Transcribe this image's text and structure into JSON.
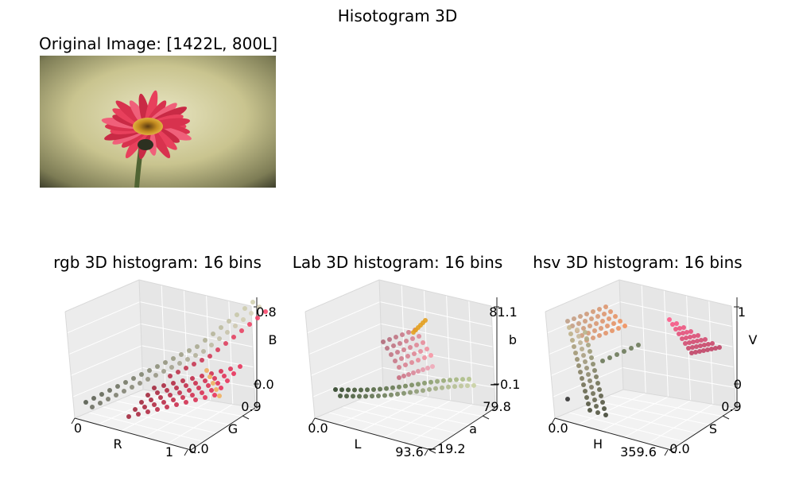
{
  "figure": {
    "title": "Hisotogram 3D"
  },
  "image": {
    "title": "Original Image: [1422L, 800L]"
  },
  "chart_data": [
    {
      "type": "scatter",
      "title": "rgb 3D histogram: 16 bins",
      "xlabel": "R",
      "ylabel": "G",
      "zlabel": "B",
      "xticks": [
        "0",
        "1"
      ],
      "yticks": [
        "0.0",
        "0.9"
      ],
      "zticks": [
        "0.0",
        "0.8"
      ],
      "xlim": [
        0,
        1
      ],
      "ylim": [
        0,
        0.9
      ],
      "zlim": [
        0,
        0.8
      ],
      "grid": true
    },
    {
      "type": "scatter",
      "title": "Lab 3D histogram: 16 bins",
      "xlabel": "L",
      "ylabel": "a",
      "zlabel": "b",
      "xticks": [
        "0.0",
        "93.6"
      ],
      "yticks": [
        "−19.2",
        "79.8"
      ],
      "zticks": [
        "−0.1",
        "81.1"
      ],
      "xlim": [
        0,
        93.6
      ],
      "ylim": [
        -19.2,
        79.8
      ],
      "zlim": [
        -0.1,
        81.1
      ],
      "grid": true
    },
    {
      "type": "scatter",
      "title": "hsv 3D histogram: 16 bins",
      "xlabel": "H",
      "ylabel": "S",
      "zlabel": "V",
      "xticks": [
        "0.0",
        "359.6"
      ],
      "yticks": [
        "0.0",
        "0.9"
      ],
      "zticks": [
        "0",
        "1"
      ],
      "xlim": [
        0,
        359.6
      ],
      "ylim": [
        0,
        0.9
      ],
      "zlim": [
        0,
        1
      ],
      "grid": true
    }
  ]
}
